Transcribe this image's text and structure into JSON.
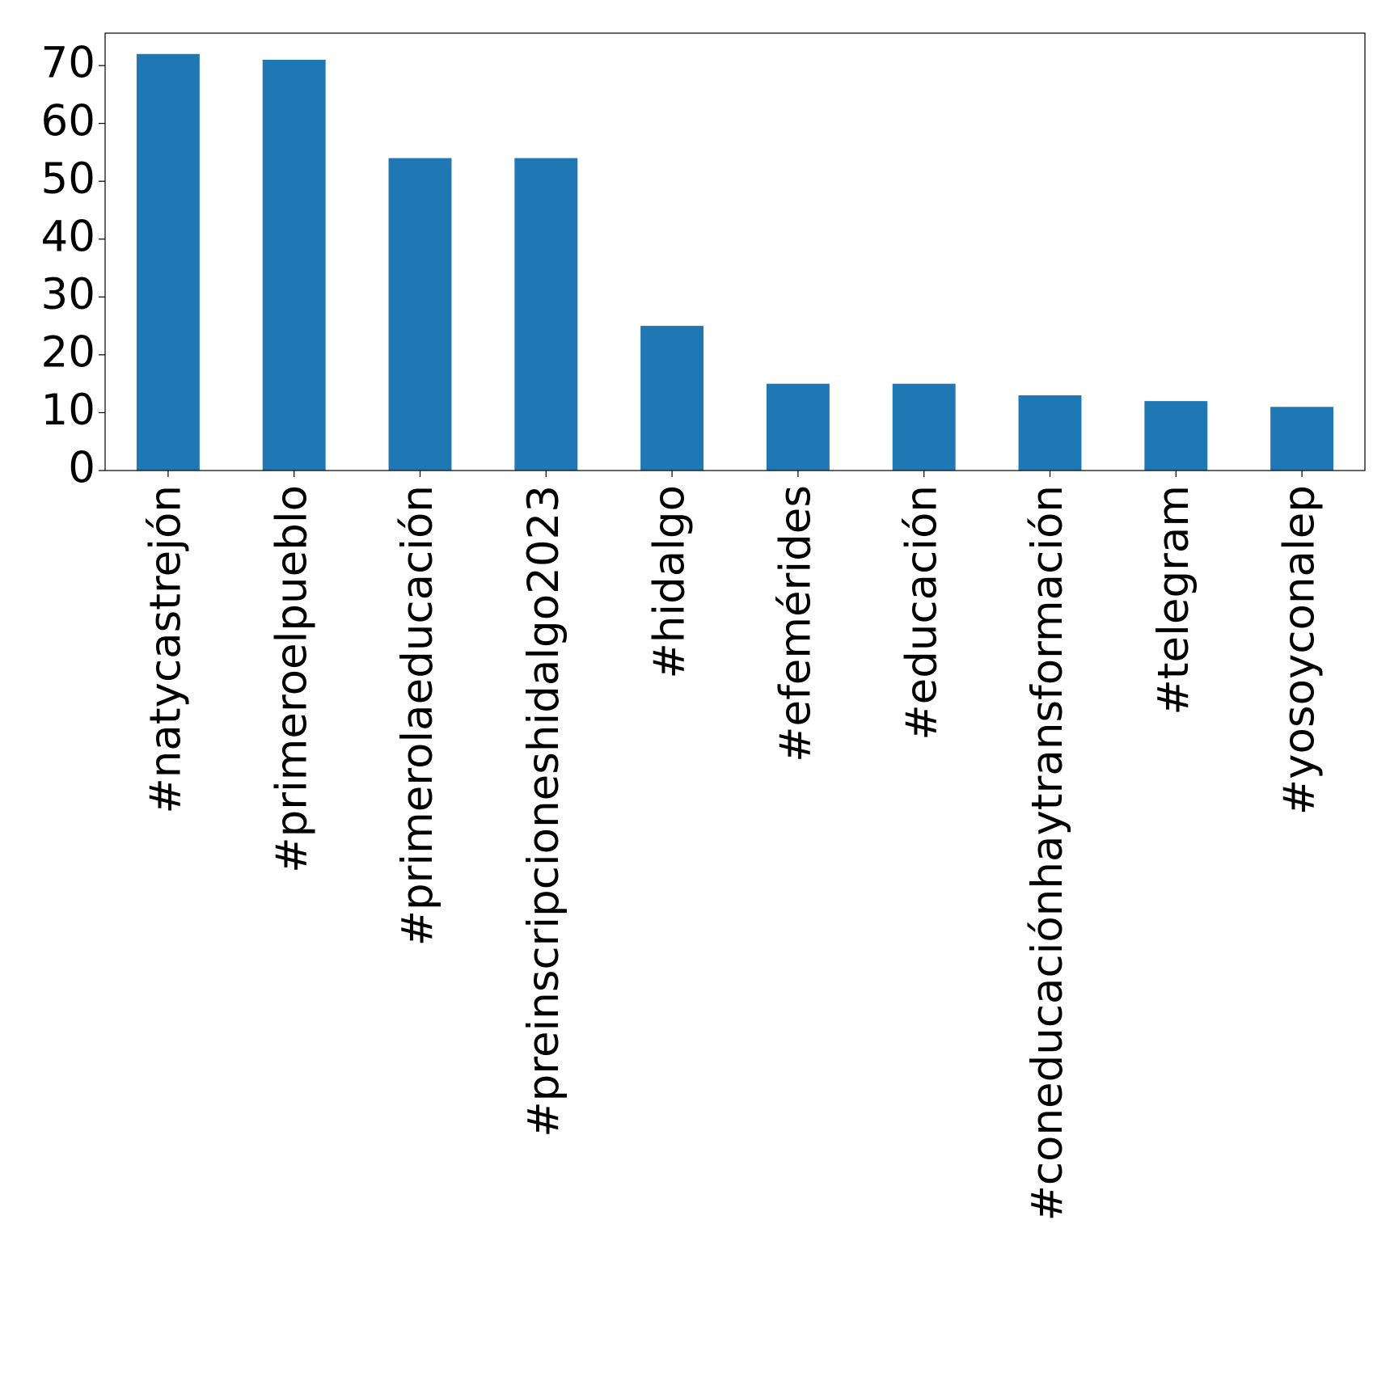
{
  "chart_data": {
    "type": "bar",
    "categories": [
      "#natycastrejón",
      "#primeroelpueblo",
      "#primerolaeducación",
      "#preinscripcioneshidalgo2023",
      "#hidalgo",
      "#efemérides",
      "#educación",
      "#coneducaciónhaytransformación",
      "#telegram",
      "#yosoyconalep"
    ],
    "values": [
      72,
      71,
      54,
      54,
      25,
      15,
      15,
      13,
      12,
      11
    ],
    "color": "#1f77b4",
    "ylim": [
      0,
      75.6
    ],
    "yticks": [
      0,
      10,
      20,
      30,
      40,
      50,
      60,
      70
    ],
    "grid": false
  }
}
